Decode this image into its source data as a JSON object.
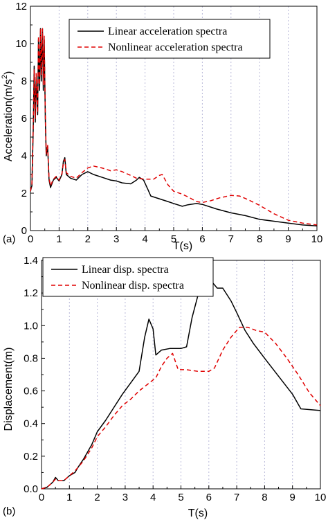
{
  "chart_data": [
    {
      "type": "line",
      "panel_label": "(a)",
      "xlabel": "T(s)",
      "ylabel_main": "Acceleration(m/s",
      "ylabel_sup": "2",
      "ylabel_end": ")",
      "xlim": [
        0,
        10
      ],
      "ylim": [
        0,
        12
      ],
      "xticks": [
        0,
        1,
        2,
        3,
        4,
        5,
        6,
        7,
        8,
        9,
        10
      ],
      "yticks": [
        0,
        2,
        4,
        6,
        8,
        10,
        12
      ],
      "grid": "vertical dotted",
      "legend_position": "top-right",
      "series": [
        {
          "name": "Linear acceleration spectra",
          "color": "#000000",
          "style": "solid",
          "points": [
            [
              0,
              2.1
            ],
            [
              0.05,
              2.4
            ],
            [
              0.1,
              5.5
            ],
            [
              0.13,
              8.8
            ],
            [
              0.17,
              5.8
            ],
            [
              0.2,
              8.2
            ],
            [
              0.25,
              6.2
            ],
            [
              0.28,
              10.2
            ],
            [
              0.32,
              7.5
            ],
            [
              0.35,
              10.8
            ],
            [
              0.38,
              8
            ],
            [
              0.42,
              10.8
            ],
            [
              0.45,
              7.5
            ],
            [
              0.48,
              10.2
            ],
            [
              0.52,
              6
            ],
            [
              0.55,
              4
            ],
            [
              0.6,
              4.5
            ],
            [
              0.65,
              2.7
            ],
            [
              0.7,
              2.3
            ],
            [
              0.8,
              2.7
            ],
            [
              0.9,
              2.85
            ],
            [
              1.0,
              2.65
            ],
            [
              1.1,
              3.0
            ],
            [
              1.15,
              3.7
            ],
            [
              1.2,
              3.9
            ],
            [
              1.25,
              3.0
            ],
            [
              1.4,
              2.8
            ],
            [
              1.6,
              2.7
            ],
            [
              1.8,
              3.0
            ],
            [
              2.0,
              3.15
            ],
            [
              2.2,
              3.0
            ],
            [
              2.5,
              2.85
            ],
            [
              2.8,
              2.7
            ],
            [
              3.0,
              2.65
            ],
            [
              3.2,
              2.55
            ],
            [
              3.5,
              2.5
            ],
            [
              3.7,
              2.7
            ],
            [
              3.8,
              2.85
            ],
            [
              3.95,
              2.7
            ],
            [
              4.1,
              2.2
            ],
            [
              4.2,
              1.85
            ],
            [
              4.5,
              1.7
            ],
            [
              4.8,
              1.55
            ],
            [
              5.0,
              1.45
            ],
            [
              5.3,
              1.3
            ],
            [
              5.5,
              1.38
            ],
            [
              5.8,
              1.45
            ],
            [
              6.0,
              1.4
            ],
            [
              6.5,
              1.15
            ],
            [
              7.0,
              0.95
            ],
            [
              7.5,
              0.8
            ],
            [
              8.0,
              0.6
            ],
            [
              8.5,
              0.5
            ],
            [
              9.0,
              0.4
            ],
            [
              9.5,
              0.3
            ],
            [
              10,
              0.25
            ]
          ]
        },
        {
          "name": "Nonlinear acceleration spectra",
          "color": "#e00000",
          "style": "dashed",
          "points": [
            [
              0,
              2.1
            ],
            [
              0.05,
              2.5
            ],
            [
              0.1,
              5.8
            ],
            [
              0.13,
              8.6
            ],
            [
              0.17,
              6
            ],
            [
              0.2,
              8.4
            ],
            [
              0.25,
              6.3
            ],
            [
              0.28,
              10.4
            ],
            [
              0.32,
              7.8
            ],
            [
              0.35,
              10.8
            ],
            [
              0.38,
              8.3
            ],
            [
              0.42,
              10.8
            ],
            [
              0.45,
              7.8
            ],
            [
              0.48,
              10.4
            ],
            [
              0.52,
              6.2
            ],
            [
              0.55,
              4.1
            ],
            [
              0.6,
              4.6
            ],
            [
              0.65,
              2.8
            ],
            [
              0.7,
              2.4
            ],
            [
              0.8,
              2.75
            ],
            [
              0.9,
              2.9
            ],
            [
              1.0,
              2.7
            ],
            [
              1.1,
              3.05
            ],
            [
              1.15,
              3.6
            ],
            [
              1.2,
              3.8
            ],
            [
              1.25,
              3.1
            ],
            [
              1.4,
              2.9
            ],
            [
              1.6,
              2.8
            ],
            [
              1.8,
              3.1
            ],
            [
              2.0,
              3.35
            ],
            [
              2.2,
              3.45
            ],
            [
              2.5,
              3.35
            ],
            [
              2.8,
              3.2
            ],
            [
              3.0,
              3.25
            ],
            [
              3.2,
              3.15
            ],
            [
              3.5,
              2.95
            ],
            [
              3.7,
              2.8
            ],
            [
              4.0,
              2.75
            ],
            [
              4.3,
              2.75
            ],
            [
              4.5,
              2.95
            ],
            [
              4.6,
              3.0
            ],
            [
              4.8,
              2.45
            ],
            [
              5.0,
              2.1
            ],
            [
              5.3,
              1.95
            ],
            [
              5.5,
              1.8
            ],
            [
              5.8,
              1.55
            ],
            [
              6.0,
              1.5
            ],
            [
              6.3,
              1.6
            ],
            [
              6.6,
              1.75
            ],
            [
              7.0,
              1.88
            ],
            [
              7.3,
              1.85
            ],
            [
              7.6,
              1.65
            ],
            [
              8.0,
              1.35
            ],
            [
              8.5,
              0.9
            ],
            [
              9.0,
              0.55
            ],
            [
              9.5,
              0.4
            ],
            [
              10,
              0.3
            ]
          ]
        }
      ]
    },
    {
      "type": "line",
      "panel_label": "(b)",
      "xlabel": "T(s)",
      "ylabel_main": "Displacement(m)",
      "xlim": [
        0,
        10
      ],
      "ylim": [
        0,
        1.4
      ],
      "xticks": [
        0,
        1,
        2,
        3,
        4,
        5,
        6,
        7,
        8,
        9,
        10
      ],
      "yticks": [
        "0.0",
        "0.2",
        "0.4",
        "0.6",
        "0.8",
        "1.0",
        "1.2",
        "1.4"
      ],
      "grid": "vertical dotted",
      "legend_position": "top-left",
      "series": [
        {
          "name": "Linear disp. spectra",
          "color": "#000000",
          "style": "solid",
          "points": [
            [
              0,
              0
            ],
            [
              0.2,
              0.01
            ],
            [
              0.4,
              0.04
            ],
            [
              0.5,
              0.07
            ],
            [
              0.6,
              0.05
            ],
            [
              0.8,
              0.05
            ],
            [
              1.0,
              0.08
            ],
            [
              1.2,
              0.1
            ],
            [
              1.3,
              0.13
            ],
            [
              1.5,
              0.18
            ],
            [
              1.8,
              0.27
            ],
            [
              2.0,
              0.35
            ],
            [
              2.3,
              0.42
            ],
            [
              2.6,
              0.5
            ],
            [
              2.9,
              0.58
            ],
            [
              3.2,
              0.65
            ],
            [
              3.5,
              0.72
            ],
            [
              3.7,
              0.93
            ],
            [
              3.85,
              1.04
            ],
            [
              4.0,
              0.98
            ],
            [
              4.1,
              0.82
            ],
            [
              4.3,
              0.85
            ],
            [
              4.6,
              0.86
            ],
            [
              5.0,
              0.86
            ],
            [
              5.2,
              0.87
            ],
            [
              5.4,
              1.05
            ],
            [
              5.6,
              1.18
            ],
            [
              5.8,
              1.27
            ],
            [
              6.0,
              1.29
            ],
            [
              6.2,
              1.25
            ],
            [
              6.3,
              1.23
            ],
            [
              6.5,
              1.23
            ],
            [
              6.8,
              1.15
            ],
            [
              7.0,
              1.08
            ],
            [
              7.3,
              0.97
            ],
            [
              7.6,
              0.89
            ],
            [
              8.0,
              0.8
            ],
            [
              8.5,
              0.69
            ],
            [
              9.0,
              0.58
            ],
            [
              9.3,
              0.49
            ],
            [
              10,
              0.48
            ]
          ]
        },
        {
          "name": "Nonlinear disp. spectra",
          "color": "#e00000",
          "style": "dashed",
          "points": [
            [
              0,
              0
            ],
            [
              0.2,
              0.01
            ],
            [
              0.4,
              0.04
            ],
            [
              0.5,
              0.06
            ],
            [
              0.6,
              0.05
            ],
            [
              0.8,
              0.05
            ],
            [
              1.0,
              0.08
            ],
            [
              1.2,
              0.11
            ],
            [
              1.3,
              0.13
            ],
            [
              1.5,
              0.17
            ],
            [
              1.8,
              0.25
            ],
            [
              2.0,
              0.32
            ],
            [
              2.3,
              0.38
            ],
            [
              2.6,
              0.45
            ],
            [
              2.9,
              0.51
            ],
            [
              3.2,
              0.55
            ],
            [
              3.5,
              0.6
            ],
            [
              3.8,
              0.64
            ],
            [
              4.1,
              0.68
            ],
            [
              4.3,
              0.75
            ],
            [
              4.5,
              0.8
            ],
            [
              4.7,
              0.83
            ],
            [
              4.9,
              0.73
            ],
            [
              5.2,
              0.73
            ],
            [
              5.6,
              0.72
            ],
            [
              6.0,
              0.72
            ],
            [
              6.2,
              0.74
            ],
            [
              6.5,
              0.85
            ],
            [
              6.8,
              0.93
            ],
            [
              7.1,
              0.99
            ],
            [
              7.4,
              0.99
            ],
            [
              7.7,
              0.97
            ],
            [
              8.0,
              0.96
            ],
            [
              8.4,
              0.89
            ],
            [
              8.8,
              0.8
            ],
            [
              9.2,
              0.7
            ],
            [
              9.6,
              0.59
            ],
            [
              10,
              0.51
            ]
          ]
        }
      ]
    }
  ]
}
